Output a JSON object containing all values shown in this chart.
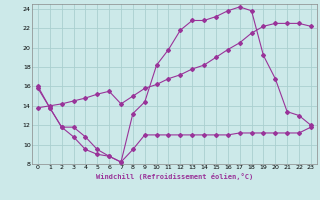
{
  "background_color": "#cce9e9",
  "grid_color": "#aacfcf",
  "line_color": "#993399",
  "xlabel": "Windchill (Refroidissement éolien,°C)",
  "xlim": [
    -0.5,
    23.5
  ],
  "ylim": [
    8,
    24.5
  ],
  "yticks": [
    8,
    10,
    12,
    14,
    16,
    18,
    20,
    22,
    24
  ],
  "xticks": [
    0,
    1,
    2,
    3,
    4,
    5,
    6,
    7,
    8,
    9,
    10,
    11,
    12,
    13,
    14,
    15,
    16,
    17,
    18,
    19,
    20,
    21,
    22,
    23
  ],
  "curve1_x": [
    0,
    1,
    2,
    3,
    4,
    5,
    6,
    7,
    8,
    9,
    10,
    11,
    12,
    13,
    14,
    15,
    16,
    17,
    18,
    19,
    20,
    21,
    22,
    23
  ],
  "curve1_y": [
    15.8,
    13.8,
    11.8,
    11.8,
    10.8,
    9.5,
    8.8,
    8.2,
    13.2,
    14.4,
    18.2,
    19.8,
    21.8,
    22.8,
    22.8,
    23.2,
    23.8,
    24.2,
    23.8,
    19.2,
    16.8,
    13.4,
    13.0,
    12.0
  ],
  "curve2_x": [
    0,
    1,
    2,
    3,
    4,
    5,
    6,
    7,
    8,
    9,
    10,
    11,
    12,
    13,
    14,
    15,
    16,
    17,
    18,
    19,
    20,
    21,
    22,
    23
  ],
  "curve2_y": [
    13.8,
    14.0,
    14.2,
    14.5,
    14.8,
    15.2,
    15.5,
    14.2,
    15.0,
    15.8,
    16.2,
    16.8,
    17.2,
    17.8,
    18.2,
    19.0,
    19.8,
    20.5,
    21.5,
    22.2,
    22.5,
    22.5,
    22.5,
    22.2
  ],
  "curve3_x": [
    0,
    1,
    2,
    3,
    4,
    5,
    6,
    7,
    8,
    9,
    10,
    11,
    12,
    13,
    14,
    15,
    16,
    17,
    18,
    19,
    20,
    21,
    22,
    23
  ],
  "curve3_y": [
    16.0,
    13.8,
    11.8,
    10.8,
    9.5,
    9.0,
    8.8,
    8.2,
    9.5,
    11.0,
    11.0,
    11.0,
    11.0,
    11.0,
    11.0,
    11.0,
    11.0,
    11.2,
    11.2,
    11.2,
    11.2,
    11.2,
    11.2,
    11.8
  ]
}
